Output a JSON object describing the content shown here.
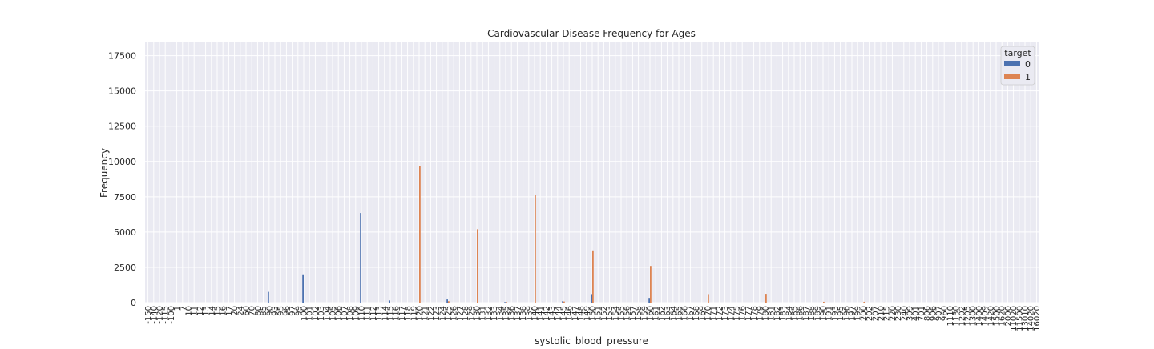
{
  "chart_data": {
    "type": "bar",
    "title": "Cardiovascular Disease Frequency for Ages",
    "xlabel": "systolic_blood_pressure",
    "ylabel": "Frequency",
    "ylim": [
      0,
      18500
    ],
    "yticks": [
      0,
      2500,
      5000,
      7500,
      10000,
      12500,
      15000,
      17500
    ],
    "grid": true,
    "legend": {
      "title": "target",
      "placement": "top-right"
    },
    "colors": {
      "0": "#4c72b0",
      "1": "#dd8452",
      "background": "#eaeaf2",
      "grid": "#ffffff"
    },
    "categories": [
      "-150",
      "-140",
      "-120",
      "-115",
      "-100",
      "1",
      "7",
      "10",
      "11",
      "12",
      "13",
      "14",
      "15",
      "16",
      "17",
      "20",
      "24",
      "60",
      "70",
      "80",
      "85",
      "90",
      "93",
      "95",
      "96",
      "97",
      "99",
      "100",
      "101",
      "102",
      "103",
      "104",
      "105",
      "106",
      "107",
      "108",
      "109",
      "110",
      "111",
      "112",
      "113",
      "114",
      "115",
      "116",
      "117",
      "118",
      "119",
      "120",
      "121",
      "122",
      "123",
      "124",
      "125",
      "126",
      "127",
      "128",
      "129",
      "130",
      "131",
      "132",
      "133",
      "134",
      "135",
      "136",
      "137",
      "138",
      "139",
      "140",
      "141",
      "142",
      "143",
      "144",
      "145",
      "146",
      "147",
      "148",
      "149",
      "150",
      "151",
      "152",
      "153",
      "154",
      "155",
      "156",
      "157",
      "158",
      "159",
      "160",
      "161",
      "162",
      "163",
      "164",
      "165",
      "166",
      "167",
      "168",
      "169",
      "170",
      "171",
      "172",
      "173",
      "174",
      "175",
      "176",
      "177",
      "178",
      "179",
      "180",
      "181",
      "182",
      "183",
      "184",
      "185",
      "186",
      "187",
      "188",
      "189",
      "190",
      "191",
      "193",
      "195",
      "196",
      "197",
      "199",
      "200",
      "202",
      "207",
      "210",
      "215",
      "220",
      "230",
      "240",
      "309",
      "401",
      "701",
      "806",
      "906",
      "907",
      "960",
      "1110",
      "1130",
      "1202",
      "1205",
      "1300",
      "1400",
      "1409",
      "1420",
      "1500",
      "1620",
      "2000",
      "11020",
      "11500",
      "13010",
      "14020",
      "16020"
    ],
    "series": [
      {
        "name": "0",
        "values": {
          "90": 760,
          "100": 2000,
          "110": 6350,
          "115": 150,
          "125": 220,
          "135": 40,
          "145": 100,
          "150": 600,
          "160": 330
        }
      },
      {
        "name": "1",
        "values": {
          "120": 9700,
          "125": 100,
          "130": 5200,
          "135": 50,
          "140": 7650,
          "145": 80,
          "150": 3700,
          "160": 2600,
          "170": 600,
          "180": 620,
          "190": 60,
          "200": 60
        }
      }
    ]
  }
}
